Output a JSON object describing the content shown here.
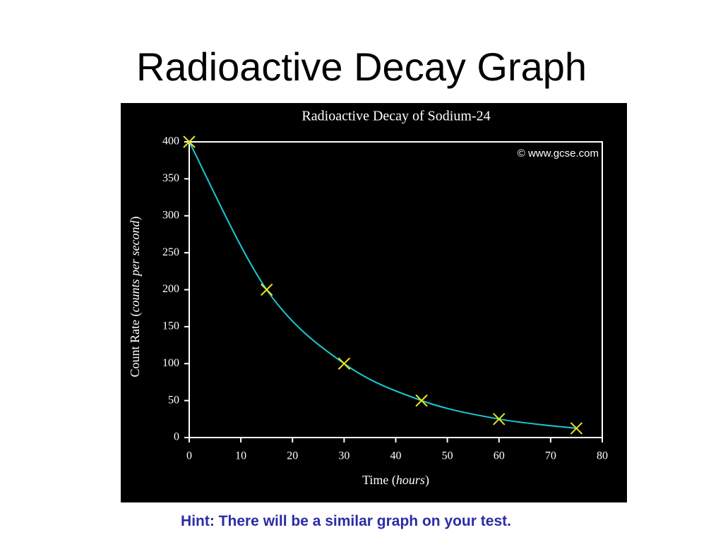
{
  "title": "Radioactive Decay Graph",
  "hint": "Hint: There will be a similar graph on your test.",
  "chart_data": {
    "type": "scatter",
    "title": "Radioactive Decay of Sodium-24",
    "watermark": "© www.gcse.com",
    "x_label": [
      "Time (",
      "hours",
      ")"
    ],
    "y_label": [
      "Count Rate (",
      "counts per second",
      ")"
    ],
    "x": [
      0,
      15,
      30,
      45,
      60,
      75
    ],
    "series": [
      {
        "values": [
          400,
          200,
          100,
          50,
          25,
          12.5
        ],
        "color": "#e6e61e",
        "line_color": "#1ec8d2",
        "smooth_line": true
      }
    ],
    "xlim": [
      0,
      80
    ],
    "xticks": [
      0,
      10,
      20,
      30,
      40,
      50,
      60,
      70,
      80
    ],
    "ylim": [
      0,
      400
    ],
    "yticks": [
      0,
      50,
      100,
      150,
      200,
      250,
      300,
      350,
      400
    ]
  }
}
